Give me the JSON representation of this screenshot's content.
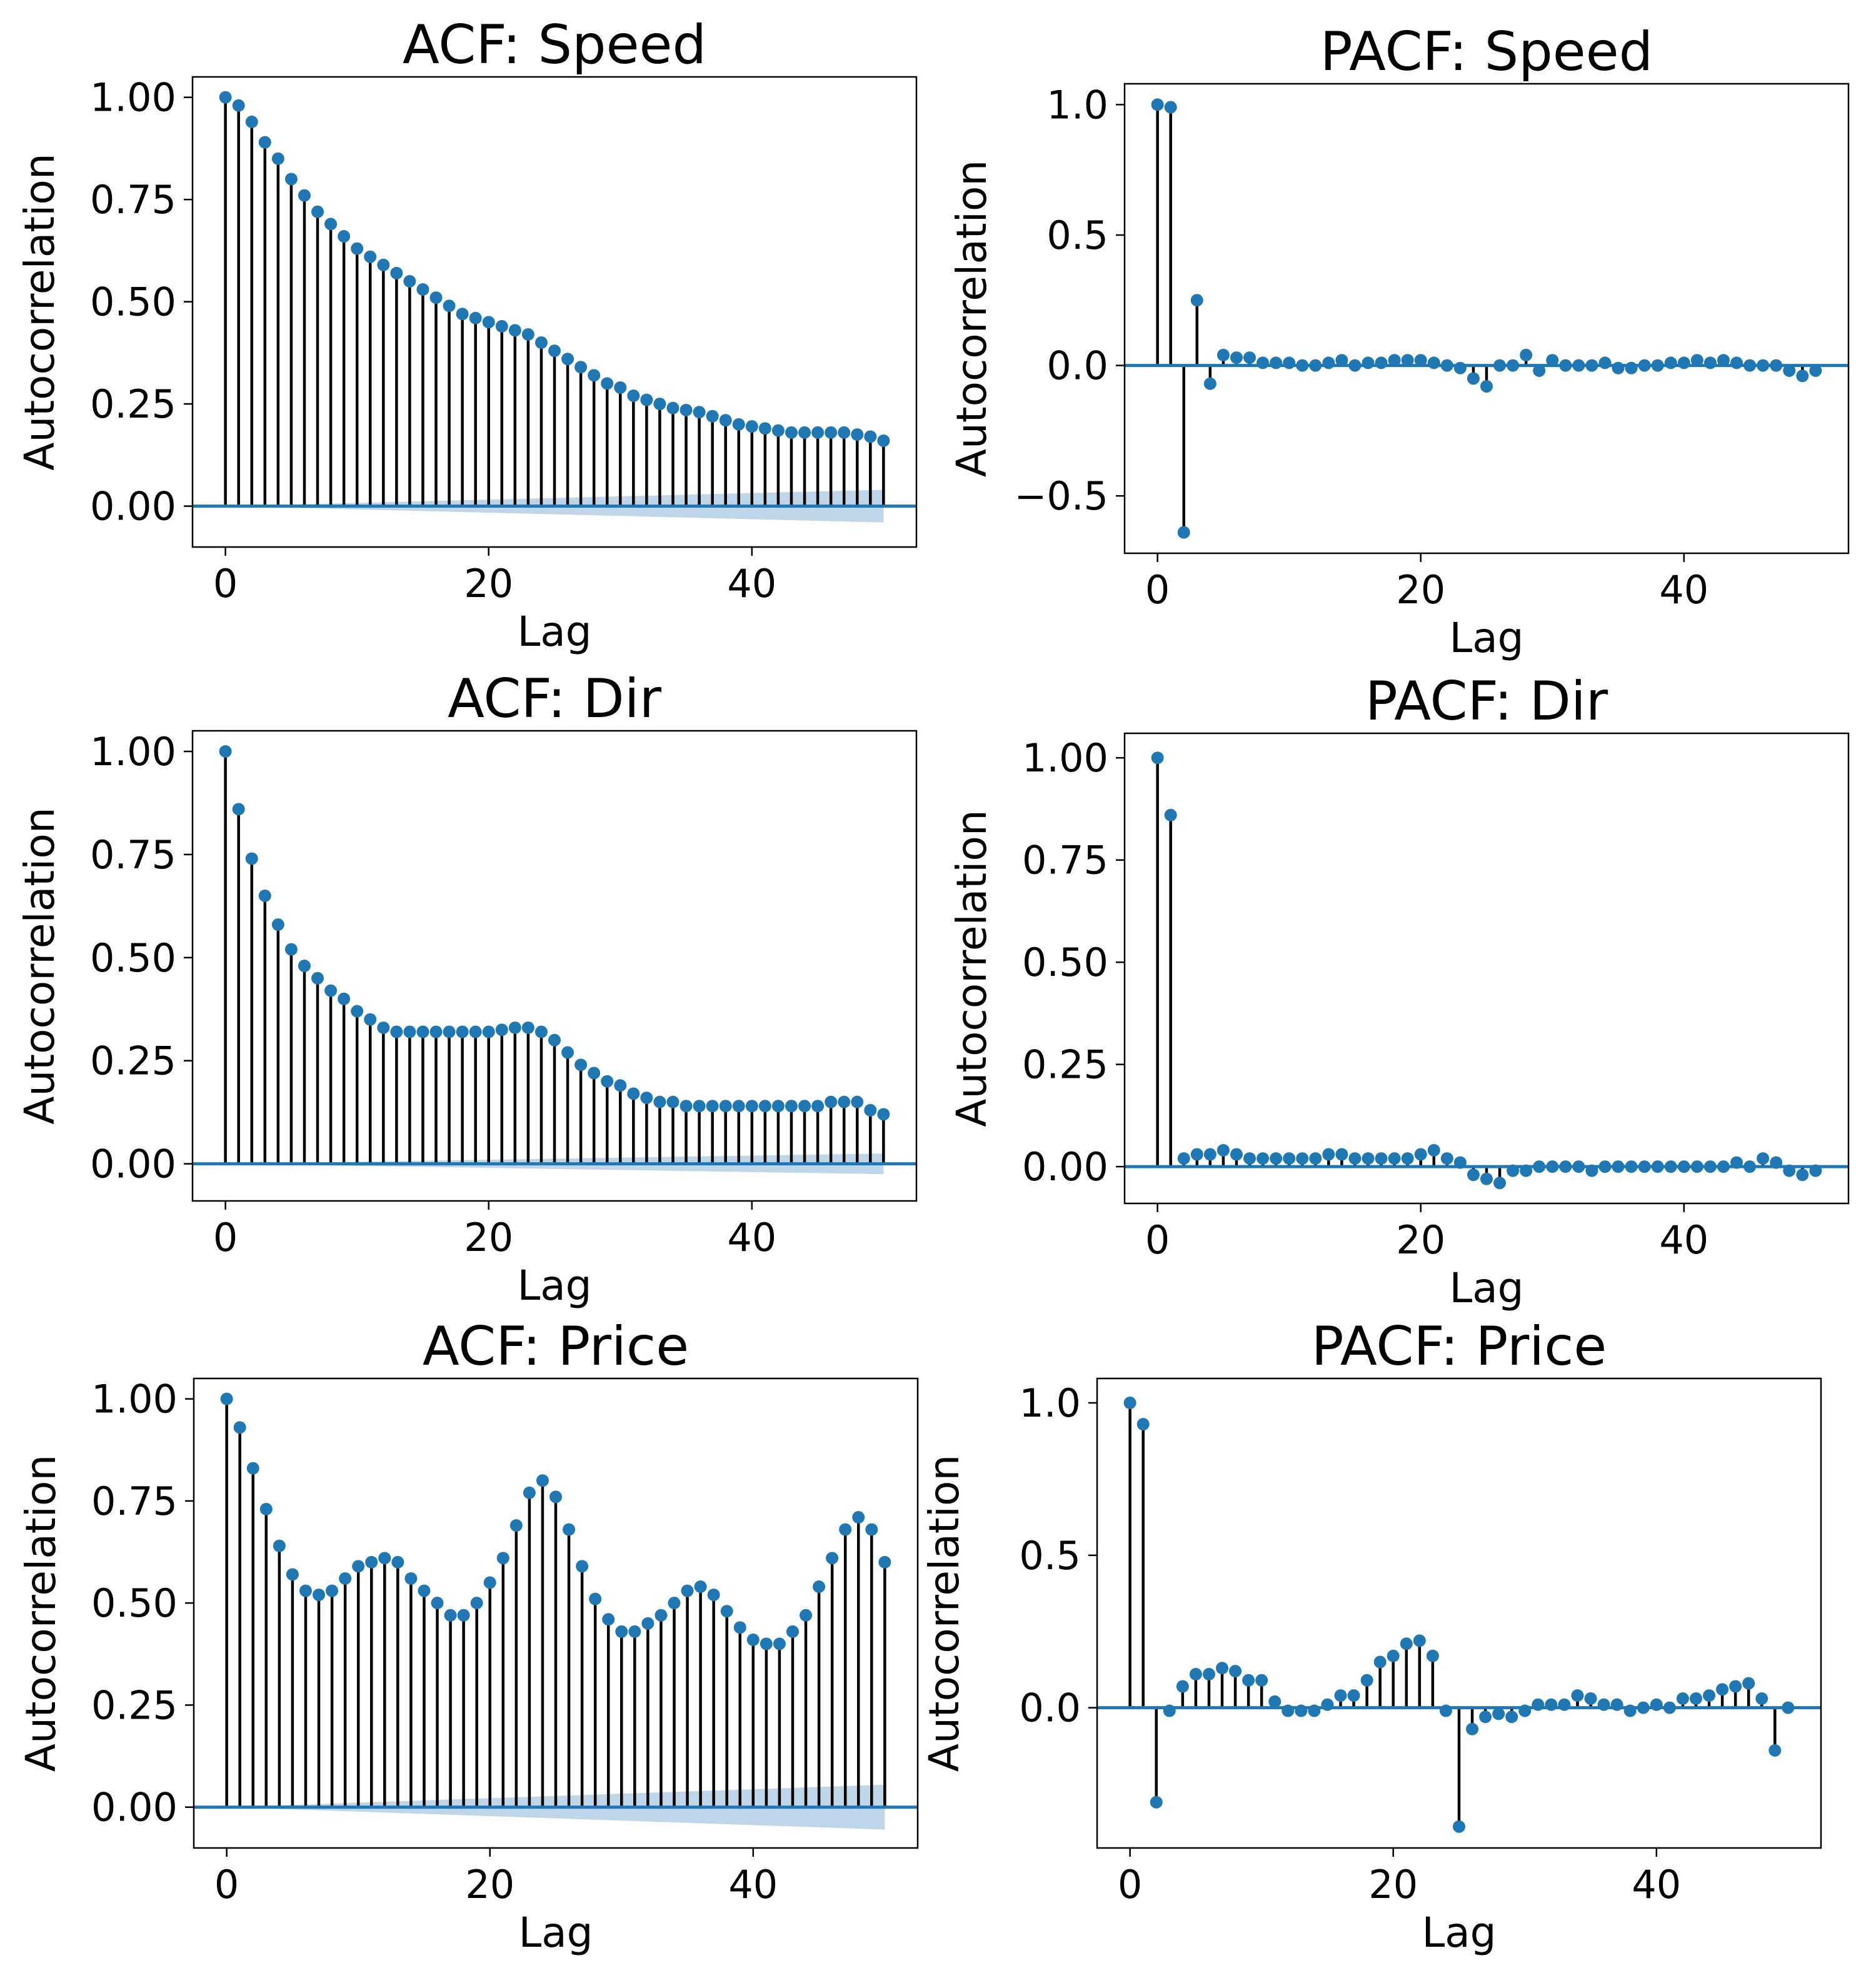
{
  "colors": {
    "marker": "#1f77b4",
    "stem": "#000000",
    "baseline": "#1f77b4",
    "confidence": "#aac7e3",
    "axes": "#000000",
    "background": "#ffffff"
  },
  "chart_data": [
    {
      "id": "acf-speed",
      "type": "stem",
      "kind": "ACF",
      "title": "ACF: Speed",
      "xlabel": "Lag",
      "ylabel": "Autocorrelation",
      "xlim": [
        -2.5,
        52.5
      ],
      "ylim": [
        -0.1,
        1.05
      ],
      "xticks": [
        0,
        20,
        40
      ],
      "xtick_labels": [
        "0",
        "20",
        "40"
      ],
      "yticks": [
        0,
        0.25,
        0.5,
        0.75,
        1.0
      ],
      "ytick_labels": [
        "0.00",
        "0.25",
        "0.50",
        "0.75",
        "1.00"
      ],
      "confidence_band": {
        "start": 0.0,
        "end": 0.04
      },
      "x": [
        0,
        1,
        2,
        3,
        4,
        5,
        6,
        7,
        8,
        9,
        10,
        11,
        12,
        13,
        14,
        15,
        16,
        17,
        18,
        19,
        20,
        21,
        22,
        23,
        24,
        25,
        26,
        27,
        28,
        29,
        30,
        31,
        32,
        33,
        34,
        35,
        36,
        37,
        38,
        39,
        40,
        41,
        42,
        43,
        44,
        45,
        46,
        47,
        48,
        49,
        50
      ],
      "values": [
        1.0,
        0.98,
        0.94,
        0.89,
        0.85,
        0.8,
        0.76,
        0.72,
        0.69,
        0.66,
        0.63,
        0.61,
        0.59,
        0.57,
        0.55,
        0.53,
        0.51,
        0.49,
        0.47,
        0.46,
        0.45,
        0.44,
        0.43,
        0.42,
        0.4,
        0.38,
        0.36,
        0.34,
        0.32,
        0.3,
        0.29,
        0.27,
        0.26,
        0.25,
        0.24,
        0.235,
        0.23,
        0.22,
        0.21,
        0.2,
        0.195,
        0.19,
        0.185,
        0.18,
        0.18,
        0.18,
        0.18,
        0.18,
        0.175,
        0.17,
        0.16
      ]
    },
    {
      "id": "pacf-speed",
      "type": "stem",
      "kind": "PACF",
      "title": "PACF: Speed",
      "xlabel": "Lag",
      "ylabel": "Autocorrelation",
      "xlim": [
        -2.5,
        52.5
      ],
      "ylim": [
        -0.72,
        1.08
      ],
      "xticks": [
        0,
        20,
        40
      ],
      "xtick_labels": [
        "0",
        "20",
        "40"
      ],
      "yticks": [
        -0.5,
        0,
        0.5,
        1.0
      ],
      "ytick_labels": [
        "−0.5",
        "0.0",
        "0.5",
        "1.0"
      ],
      "x": [
        0,
        1,
        2,
        3,
        4,
        5,
        6,
        7,
        8,
        9,
        10,
        11,
        12,
        13,
        14,
        15,
        16,
        17,
        18,
        19,
        20,
        21,
        22,
        23,
        24,
        25,
        26,
        27,
        28,
        29,
        30,
        31,
        32,
        33,
        34,
        35,
        36,
        37,
        38,
        39,
        40,
        41,
        42,
        43,
        44,
        45,
        46,
        47,
        48,
        49,
        50
      ],
      "values": [
        1.0,
        0.99,
        -0.64,
        0.25,
        -0.07,
        0.04,
        0.03,
        0.03,
        0.01,
        0.01,
        0.01,
        0.0,
        0.0,
        0.01,
        0.02,
        0.0,
        0.01,
        0.01,
        0.02,
        0.02,
        0.02,
        0.01,
        0.0,
        -0.01,
        -0.05,
        -0.08,
        0.0,
        0.0,
        0.04,
        -0.02,
        0.02,
        0.0,
        0.0,
        0.0,
        0.01,
        -0.01,
        -0.01,
        0.0,
        0.0,
        0.01,
        0.01,
        0.02,
        0.01,
        0.02,
        0.01,
        0.0,
        0.0,
        0.0,
        -0.02,
        -0.04,
        -0.02
      ]
    },
    {
      "id": "acf-dir",
      "type": "stem",
      "kind": "ACF",
      "title": "ACF: Dir",
      "xlabel": "Lag",
      "ylabel": "Autocorrelation",
      "xlim": [
        -2.5,
        52.5
      ],
      "ylim": [
        -0.09,
        1.05
      ],
      "xticks": [
        0,
        20,
        40
      ],
      "xtick_labels": [
        "0",
        "20",
        "40"
      ],
      "yticks": [
        0,
        0.25,
        0.5,
        0.75,
        1.0
      ],
      "ytick_labels": [
        "0.00",
        "0.25",
        "0.50",
        "0.75",
        "1.00"
      ],
      "confidence_band": {
        "start": 0.0,
        "end": 0.025
      },
      "x": [
        0,
        1,
        2,
        3,
        4,
        5,
        6,
        7,
        8,
        9,
        10,
        11,
        12,
        13,
        14,
        15,
        16,
        17,
        18,
        19,
        20,
        21,
        22,
        23,
        24,
        25,
        26,
        27,
        28,
        29,
        30,
        31,
        32,
        33,
        34,
        35,
        36,
        37,
        38,
        39,
        40,
        41,
        42,
        43,
        44,
        45,
        46,
        47,
        48,
        49,
        50
      ],
      "values": [
        1.0,
        0.86,
        0.74,
        0.65,
        0.58,
        0.52,
        0.48,
        0.45,
        0.42,
        0.4,
        0.37,
        0.35,
        0.33,
        0.32,
        0.32,
        0.32,
        0.32,
        0.32,
        0.32,
        0.32,
        0.32,
        0.325,
        0.33,
        0.33,
        0.32,
        0.3,
        0.27,
        0.24,
        0.22,
        0.2,
        0.19,
        0.17,
        0.16,
        0.15,
        0.15,
        0.14,
        0.14,
        0.14,
        0.14,
        0.14,
        0.14,
        0.14,
        0.14,
        0.14,
        0.14,
        0.14,
        0.15,
        0.15,
        0.15,
        0.13,
        0.12
      ]
    },
    {
      "id": "pacf-dir",
      "type": "stem",
      "kind": "PACF",
      "title": "PACF: Dir",
      "xlabel": "Lag",
      "ylabel": "Autocorrelation",
      "xlim": [
        -2.5,
        52.5
      ],
      "ylim": [
        -0.09,
        1.06
      ],
      "xticks": [
        0,
        20,
        40
      ],
      "xtick_labels": [
        "0",
        "20",
        "40"
      ],
      "yticks": [
        0,
        0.25,
        0.5,
        0.75,
        1.0
      ],
      "ytick_labels": [
        "0.00",
        "0.25",
        "0.50",
        "0.75",
        "1.00"
      ],
      "x": [
        0,
        1,
        2,
        3,
        4,
        5,
        6,
        7,
        8,
        9,
        10,
        11,
        12,
        13,
        14,
        15,
        16,
        17,
        18,
        19,
        20,
        21,
        22,
        23,
        24,
        25,
        26,
        27,
        28,
        29,
        30,
        31,
        32,
        33,
        34,
        35,
        36,
        37,
        38,
        39,
        40,
        41,
        42,
        43,
        44,
        45,
        46,
        47,
        48,
        49,
        50
      ],
      "values": [
        1.0,
        0.86,
        0.02,
        0.03,
        0.03,
        0.04,
        0.03,
        0.02,
        0.02,
        0.02,
        0.02,
        0.02,
        0.02,
        0.03,
        0.03,
        0.02,
        0.02,
        0.02,
        0.02,
        0.02,
        0.03,
        0.04,
        0.02,
        0.01,
        -0.02,
        -0.03,
        -0.04,
        -0.01,
        -0.01,
        0.0,
        0.0,
        0.0,
        0.0,
        -0.01,
        0.0,
        0.0,
        0.0,
        0.0,
        0.0,
        0.0,
        0.0,
        0.0,
        0.0,
        0.0,
        0.01,
        0.0,
        0.02,
        0.01,
        -0.01,
        -0.02,
        -0.01
      ]
    },
    {
      "id": "acf-price",
      "type": "stem",
      "kind": "ACF",
      "title": "ACF: Price",
      "xlabel": "Lag",
      "ylabel": "Autocorrelation",
      "xlim": [
        -2.5,
        52.5
      ],
      "ylim": [
        -0.1,
        1.05
      ],
      "xticks": [
        0,
        20,
        40
      ],
      "xtick_labels": [
        "0",
        "20",
        "40"
      ],
      "yticks": [
        0,
        0.25,
        0.5,
        0.75,
        1.0
      ],
      "ytick_labels": [
        "0.00",
        "0.25",
        "0.50",
        "0.75",
        "1.00"
      ],
      "confidence_band": {
        "start": 0.0,
        "end": 0.055
      },
      "x": [
        0,
        1,
        2,
        3,
        4,
        5,
        6,
        7,
        8,
        9,
        10,
        11,
        12,
        13,
        14,
        15,
        16,
        17,
        18,
        19,
        20,
        21,
        22,
        23,
        24,
        25,
        26,
        27,
        28,
        29,
        30,
        31,
        32,
        33,
        34,
        35,
        36,
        37,
        38,
        39,
        40,
        41,
        42,
        43,
        44,
        45,
        46,
        47,
        48,
        49,
        50
      ],
      "values": [
        1.0,
        0.93,
        0.83,
        0.73,
        0.64,
        0.57,
        0.53,
        0.52,
        0.53,
        0.56,
        0.59,
        0.6,
        0.61,
        0.6,
        0.56,
        0.53,
        0.5,
        0.47,
        0.47,
        0.5,
        0.55,
        0.61,
        0.69,
        0.77,
        0.8,
        0.76,
        0.68,
        0.59,
        0.51,
        0.46,
        0.43,
        0.43,
        0.45,
        0.47,
        0.5,
        0.53,
        0.54,
        0.52,
        0.48,
        0.44,
        0.41,
        0.4,
        0.4,
        0.43,
        0.47,
        0.54,
        0.61,
        0.68,
        0.71,
        0.68,
        0.6
      ]
    },
    {
      "id": "pacf-price",
      "type": "stem",
      "kind": "PACF",
      "title": "PACF: Price",
      "xlabel": "Lag",
      "ylabel": "Autocorrelation",
      "xlim": [
        -2.5,
        52.5
      ],
      "ylim": [
        -0.46,
        1.08
      ],
      "xticks": [
        0,
        20,
        40
      ],
      "xtick_labels": [
        "0",
        "20",
        "40"
      ],
      "yticks": [
        0,
        0.5,
        1.0
      ],
      "ytick_labels": [
        "0.0",
        "0.5",
        "1.0"
      ],
      "x": [
        0,
        1,
        2,
        3,
        4,
        5,
        6,
        7,
        8,
        9,
        10,
        11,
        12,
        13,
        14,
        15,
        16,
        17,
        18,
        19,
        20,
        21,
        22,
        23,
        24,
        25,
        26,
        27,
        28,
        29,
        30,
        31,
        32,
        33,
        34,
        35,
        36,
        37,
        38,
        39,
        40,
        41,
        42,
        43,
        44,
        45,
        46,
        47,
        48,
        49,
        50
      ],
      "values": [
        1.0,
        0.93,
        -0.31,
        -0.01,
        0.07,
        0.11,
        0.11,
        0.13,
        0.12,
        0.09,
        0.09,
        0.02,
        -0.01,
        -0.01,
        -0.01,
        0.01,
        0.04,
        0.04,
        0.09,
        0.15,
        0.17,
        0.21,
        0.22,
        0.17,
        -0.01,
        -0.39,
        -0.07,
        -0.03,
        -0.02,
        -0.03,
        -0.01,
        0.01,
        0.01,
        0.01,
        0.04,
        0.03,
        0.01,
        0.01,
        -0.01,
        0.0,
        0.01,
        0.0,
        0.03,
        0.03,
        0.04,
        0.06,
        0.07,
        0.08,
        0.03,
        -0.14,
        0.0
      ]
    }
  ]
}
